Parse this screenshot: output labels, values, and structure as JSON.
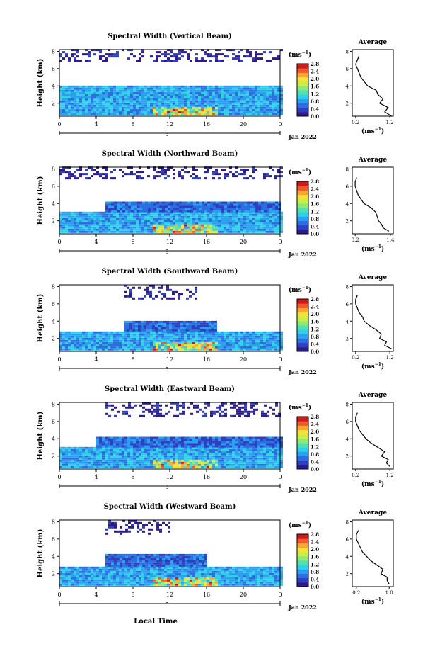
{
  "colors": {
    "axis": "#000000",
    "colorbar_stops": [
      "#2d1b8c",
      "#2f3fc0",
      "#2a6ee0",
      "#2aa0f0",
      "#2fd0e8",
      "#52e0b0",
      "#8ee87a",
      "#c8ee4a",
      "#f6e03a",
      "#f8a830",
      "#ee5a28",
      "#cf1a1a"
    ]
  },
  "shared": {
    "ylabel": "Height (km)",
    "unit_label": "(ms",
    "unit_exp": "−1",
    "unit_close": ")",
    "avg_title": "Average",
    "avg_unit": "(ms",
    "date_label": "Jan 2022",
    "day_label": "5",
    "xlabel": "Local Time",
    "x_ticks": [
      "0",
      "4",
      "8",
      "12",
      "16",
      "20",
      "0"
    ],
    "y_ticks": [
      "2",
      "4",
      "6",
      "8"
    ],
    "avg_y_ticks": [
      "2",
      "4",
      "6",
      "8"
    ],
    "colorbar_ticks": [
      "0.0",
      "0.4",
      "0.8",
      "1.2",
      "1.6",
      "2.0",
      "2.4",
      "2.8"
    ]
  },
  "chart_data": [
    {
      "type": "heatmap",
      "title": "Spectral Width (Vertical Beam)",
      "xlim": [
        0,
        24
      ],
      "ylim": [
        0.5,
        8.2
      ],
      "clim": [
        0,
        3.0
      ],
      "layers": [
        {
          "t0": 0,
          "t1": 24,
          "h0": 0.6,
          "h1": 4.0,
          "v": 0.9
        },
        {
          "t0": 0,
          "t1": 24,
          "h0": 6.8,
          "h1": 8.2,
          "v": 0.15,
          "sparse": true
        }
      ],
      "avg": {
        "xticks": [
          "0.2",
          "1.2"
        ],
        "xlim": [
          0.1,
          1.3
        ],
        "profile": [
          [
            1.25,
            0.5
          ],
          [
            1.05,
            1.0
          ],
          [
            1.15,
            1.5
          ],
          [
            0.9,
            2.0
          ],
          [
            1.0,
            2.5
          ],
          [
            0.85,
            3.0
          ],
          [
            0.8,
            3.5
          ],
          [
            0.55,
            4.0
          ],
          [
            0.45,
            4.5
          ],
          [
            0.35,
            5.0
          ],
          [
            0.3,
            5.5
          ],
          [
            0.25,
            6.0
          ],
          [
            0.2,
            6.5
          ],
          [
            0.25,
            7.0
          ],
          [
            0.3,
            7.5
          ]
        ]
      }
    },
    {
      "type": "heatmap",
      "title": "Spectral Width (Northward Beam)",
      "xlim": [
        0,
        24
      ],
      "ylim": [
        0.5,
        8.2
      ],
      "clim": [
        0,
        3.0
      ],
      "layers": [
        {
          "t0": 0,
          "t1": 24,
          "h0": 0.6,
          "h1": 3.0,
          "v": 0.9
        },
        {
          "t0": 5,
          "t1": 24,
          "h0": 3.0,
          "h1": 4.0,
          "v": 0.6
        },
        {
          "t0": 0,
          "t1": 24,
          "h0": 6.8,
          "h1": 8.2,
          "v": 0.15,
          "sparse": true
        }
      ],
      "avg": {
        "xticks": [
          "0.2",
          "1.4"
        ],
        "xlim": [
          0.1,
          1.5
        ],
        "profile": [
          [
            1.35,
            0.8
          ],
          [
            1.15,
            1.2
          ],
          [
            1.1,
            1.6
          ],
          [
            1.0,
            2.0
          ],
          [
            0.95,
            2.5
          ],
          [
            0.9,
            3.0
          ],
          [
            0.75,
            3.5
          ],
          [
            0.5,
            4.0
          ],
          [
            0.4,
            4.5
          ],
          [
            0.3,
            5.0
          ],
          [
            0.25,
            5.5
          ],
          [
            0.2,
            6.0
          ],
          [
            0.2,
            6.5
          ],
          [
            0.25,
            7.0
          ]
        ]
      }
    },
    {
      "type": "heatmap",
      "title": "Spectral Width (Southward Beam)",
      "xlim": [
        0,
        24
      ],
      "ylim": [
        0.5,
        8.2
      ],
      "clim": [
        0,
        3.0
      ],
      "layers": [
        {
          "t0": 0,
          "t1": 24,
          "h0": 0.6,
          "h1": 2.8,
          "v": 0.9
        },
        {
          "t0": 7,
          "t1": 17,
          "h0": 2.8,
          "h1": 4.0,
          "v": 0.55
        },
        {
          "t0": 7,
          "t1": 15,
          "h0": 6.5,
          "h1": 8.0,
          "v": 0.15,
          "sparse": true
        }
      ],
      "avg": {
        "xticks": [
          "0.2",
          "1.2"
        ],
        "xlim": [
          0.1,
          1.3
        ],
        "profile": [
          [
            1.25,
            0.8
          ],
          [
            1.05,
            1.2
          ],
          [
            1.1,
            1.6
          ],
          [
            0.9,
            2.0
          ],
          [
            0.95,
            2.5
          ],
          [
            0.8,
            3.0
          ],
          [
            0.6,
            3.5
          ],
          [
            0.45,
            4.0
          ],
          [
            0.4,
            4.5
          ],
          [
            0.3,
            5.0
          ],
          [
            0.25,
            5.5
          ],
          [
            0.2,
            6.0
          ],
          [
            0.2,
            6.5
          ],
          [
            0.25,
            7.0
          ]
        ]
      }
    },
    {
      "type": "heatmap",
      "title": "Spectral Width (Eastward Beam)",
      "xlim": [
        0,
        24
      ],
      "ylim": [
        0.5,
        8.2
      ],
      "clim": [
        0,
        3.0
      ],
      "layers": [
        {
          "t0": 0,
          "t1": 24,
          "h0": 0.6,
          "h1": 3.0,
          "v": 0.9
        },
        {
          "t0": 4,
          "t1": 24,
          "h0": 3.0,
          "h1": 4.2,
          "v": 0.6
        },
        {
          "t0": 5,
          "t1": 24,
          "h0": 6.5,
          "h1": 8.2,
          "v": 0.15,
          "sparse": true
        }
      ],
      "avg": {
        "xticks": [
          "0.2",
          "1.2"
        ],
        "xlim": [
          0.1,
          1.3
        ],
        "profile": [
          [
            1.2,
            0.8
          ],
          [
            1.1,
            1.2
          ],
          [
            1.15,
            1.6
          ],
          [
            0.95,
            2.0
          ],
          [
            1.05,
            2.5
          ],
          [
            0.85,
            3.0
          ],
          [
            0.65,
            3.5
          ],
          [
            0.5,
            4.0
          ],
          [
            0.4,
            4.5
          ],
          [
            0.3,
            5.0
          ],
          [
            0.25,
            5.5
          ],
          [
            0.2,
            6.0
          ],
          [
            0.2,
            6.5
          ],
          [
            0.25,
            7.0
          ]
        ]
      }
    },
    {
      "type": "heatmap",
      "title": "Spectral Width (Westward Beam)",
      "xlim": [
        0,
        24
      ],
      "ylim": [
        0.5,
        8.2
      ],
      "clim": [
        0,
        3.0
      ],
      "layers": [
        {
          "t0": 0,
          "t1": 24,
          "h0": 0.6,
          "h1": 2.8,
          "v": 0.9
        },
        {
          "t0": 5,
          "t1": 16,
          "h0": 2.8,
          "h1": 4.2,
          "v": 0.55
        },
        {
          "t0": 5,
          "t1": 12,
          "h0": 6.5,
          "h1": 8.2,
          "v": 0.15,
          "sparse": true
        }
      ],
      "avg": {
        "xticks": [
          "0.2",
          "1.0"
        ],
        "xlim": [
          0.1,
          1.1
        ],
        "profile": [
          [
            1.0,
            0.8
          ],
          [
            0.95,
            1.2
          ],
          [
            0.95,
            1.6
          ],
          [
            0.8,
            2.0
          ],
          [
            0.85,
            2.5
          ],
          [
            0.7,
            3.0
          ],
          [
            0.55,
            3.5
          ],
          [
            0.45,
            4.0
          ],
          [
            0.35,
            4.5
          ],
          [
            0.3,
            5.0
          ],
          [
            0.25,
            5.5
          ],
          [
            0.2,
            6.0
          ],
          [
            0.2,
            6.5
          ],
          [
            0.25,
            7.0
          ]
        ]
      }
    }
  ]
}
